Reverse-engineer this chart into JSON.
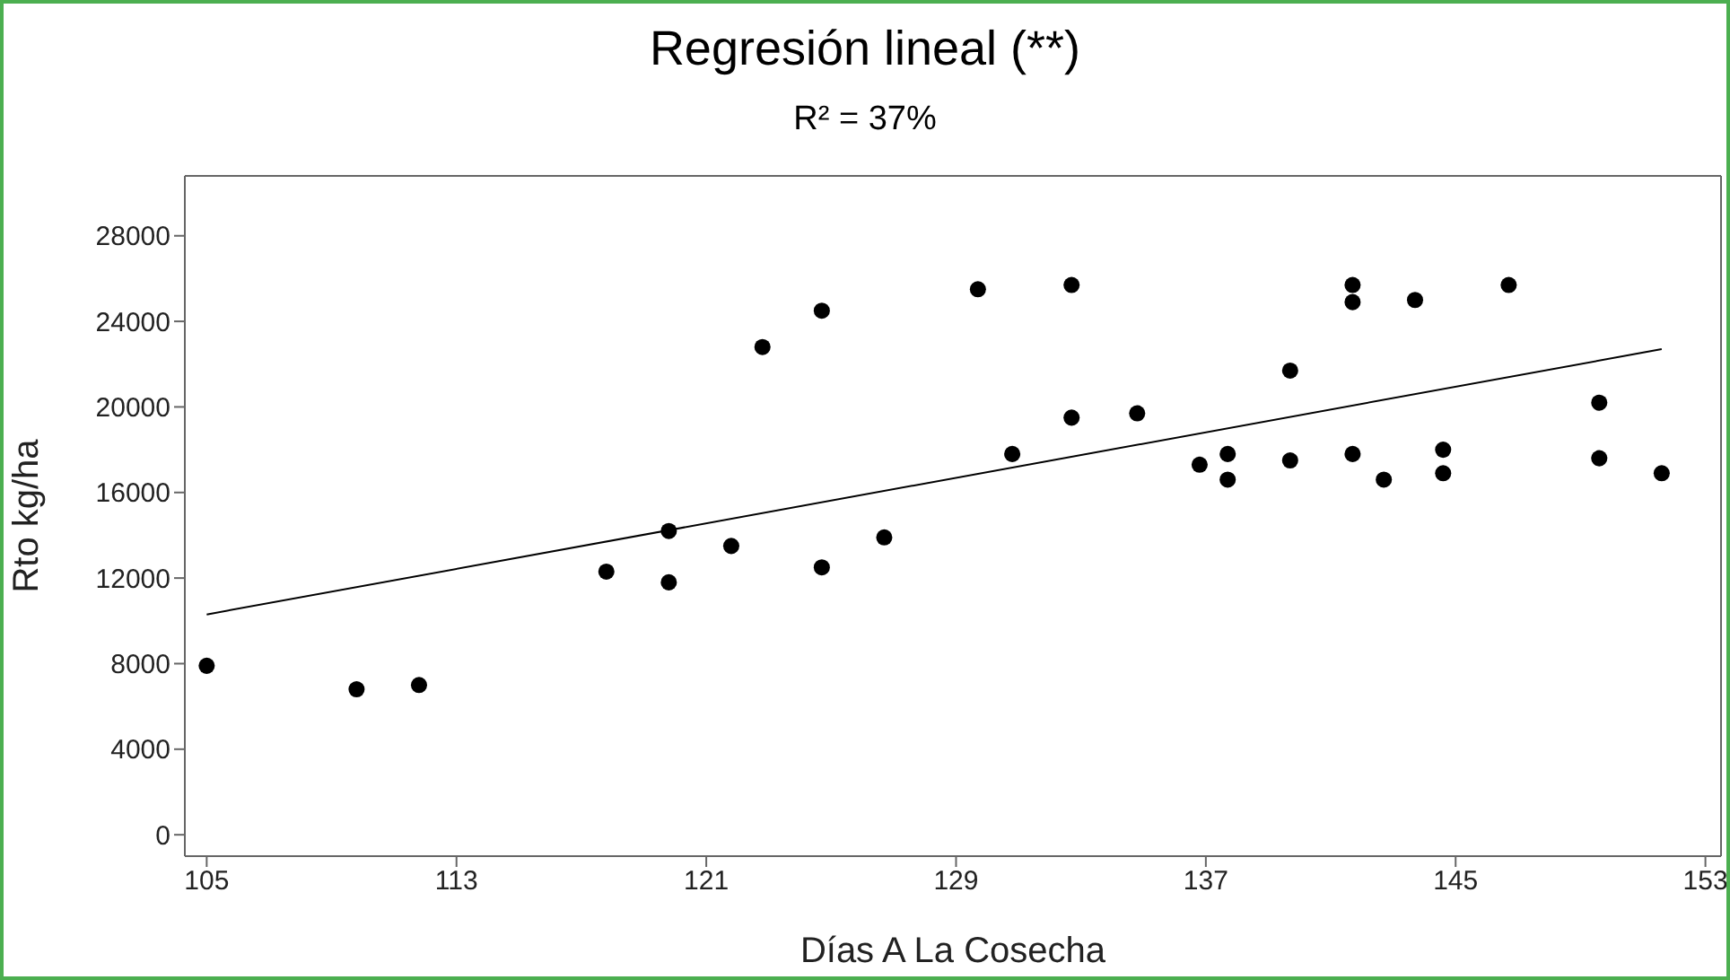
{
  "chart_data": {
    "type": "scatter",
    "title": "Regresión lineal (**)",
    "subtitle": "R² = 37%",
    "xlabel": "Días A La Cosecha",
    "ylabel": "Rto  kg/ha",
    "xlim": [
      104.3,
      153.5
    ],
    "xticks": [
      105,
      113,
      121,
      129,
      137,
      145,
      153
    ],
    "ylim": [
      -1000,
      30800
    ],
    "yticks": [
      0,
      4000,
      8000,
      12000,
      16000,
      20000,
      24000,
      28000
    ],
    "grid": false,
    "marker": "circle",
    "series": [
      {
        "color": "#000000",
        "x": [
          105,
          109.8,
          111.8,
          117.8,
          119.8,
          119.8,
          121.8,
          122.8,
          124.7,
          124.7,
          126.7,
          129.7,
          130.8,
          132.7,
          132.7,
          134.8,
          136.8,
          137.7,
          137.7,
          139.7,
          139.7,
          141.7,
          141.7,
          141.7,
          142.7,
          143.7,
          144.6,
          144.6,
          146.7,
          149.6,
          149.6,
          151.6
        ],
        "values": [
          7900,
          6800,
          7000,
          12300,
          14200,
          11800,
          13500,
          22800,
          24500,
          12500,
          13900,
          25500,
          17800,
          25700,
          19500,
          19700,
          17300,
          17800,
          16600,
          21700,
          17500,
          25700,
          24900,
          17800,
          16600,
          25000,
          18000,
          16900,
          25700,
          20200,
          17600,
          16900
        ]
      },
      {
        "type": "line",
        "color": "#000000",
        "marker": "none",
        "x": [
          105,
          151.6
        ],
        "values": [
          10300,
          22700
        ]
      }
    ]
  }
}
